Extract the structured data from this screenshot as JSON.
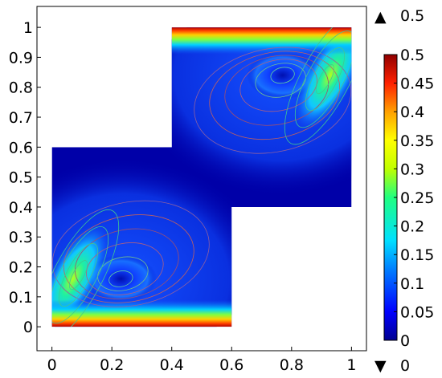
{
  "chart_data": {
    "type": "heatmap",
    "title": "",
    "xlabel": "",
    "ylabel": "",
    "xlim": [
      -0.05,
      1.05
    ],
    "ylim": [
      -0.08,
      1.07
    ],
    "xticks": [
      "0",
      "0.2",
      "0.4",
      "0.6",
      "0.8",
      "1"
    ],
    "xtick_values": [
      0,
      0.2,
      0.4,
      0.6,
      0.8,
      1
    ],
    "yticks": [
      "0",
      "0.1",
      "0.2",
      "0.3",
      "0.4",
      "0.5",
      "0.6",
      "0.7",
      "0.8",
      "0.9",
      "1"
    ],
    "ytick_values": [
      0,
      0.1,
      0.2,
      0.3,
      0.4,
      0.5,
      0.6,
      0.7,
      0.8,
      0.9,
      1
    ],
    "domain": {
      "lower_square": {
        "x": [
          0,
          0.6
        ],
        "y": [
          0,
          0.6
        ]
      },
      "upper_square": {
        "x": [
          0.4,
          1
        ],
        "y": [
          0.4,
          1
        ]
      }
    },
    "colorbar": {
      "min": 0,
      "max": 0.5,
      "ticks": [
        "0",
        "0.05",
        "0.1",
        "0.15",
        "0.2",
        "0.25",
        "0.3",
        "0.35",
        "0.4",
        "0.45",
        "0.5"
      ],
      "tick_values": [
        0,
        0.05,
        0.1,
        0.15,
        0.2,
        0.25,
        0.3,
        0.35,
        0.4,
        0.45,
        0.5
      ],
      "colormap": "rainbow",
      "max_marker": {
        "symbol": "▲",
        "label": "0.5"
      },
      "min_marker": {
        "symbol": "▼",
        "label": "0"
      }
    },
    "features": [
      {
        "name": "lid-shear-top",
        "x": [
          0.4,
          1.0
        ],
        "y": 1.0,
        "value": 0.5
      },
      {
        "name": "lid-shear-bottom",
        "x": [
          0.0,
          0.6
        ],
        "y": 0.0,
        "value": 0.5
      },
      {
        "name": "upper-vortex-core",
        "x": 0.77,
        "y": 0.84,
        "value": 0.03
      },
      {
        "name": "lower-vortex-core",
        "x": 0.23,
        "y": 0.16,
        "value": 0.03
      },
      {
        "name": "upper-jet",
        "x": 0.93,
        "y": 0.84,
        "value": 0.24
      },
      {
        "name": "lower-jet",
        "x": 0.07,
        "y": 0.16,
        "value": 0.24
      }
    ],
    "grid": false
  },
  "colors": {
    "background_field": "#0000a8",
    "axis": "#000000"
  }
}
